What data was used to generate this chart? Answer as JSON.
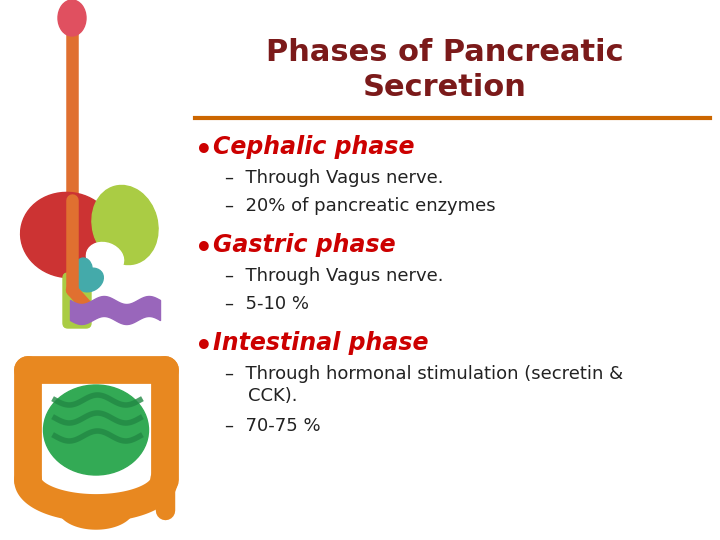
{
  "title_line1": "Phases of Pancreatic",
  "title_line2": "Secretion",
  "title_color": "#7B1A1A",
  "title_fontsize": 22,
  "divider_color": "#CC6600",
  "bullet_color": "#CC0000",
  "bullet_fontsize": 17,
  "sub_fontsize": 13,
  "sub_color": "#222222",
  "background_color": "#FFFFFF",
  "bullets": [
    {
      "label": "Cephalic phase",
      "subs": [
        "–  Through Vagus nerve.",
        "–  20% of pancreatic enzymes"
      ]
    },
    {
      "label": "Gastric phase",
      "subs": [
        "–  Through Vagus nerve.",
        "–  5-10 %"
      ]
    },
    {
      "label": "Intestinal phase",
      "subs": [
        "–  Through hormonal stimulation (secretin &\n    CCK).",
        "–  70-75 %"
      ]
    }
  ],
  "organ_colors": {
    "esophagus": "#E07030",
    "bulb": "#E05060",
    "liver": "#CC3333",
    "stomach": "#AACC44",
    "bile": "#44AAAA",
    "pancreas": "#9966BB",
    "colon": "#E88820",
    "intestine": "#33AA55",
    "intestine_dark": "#228844"
  }
}
